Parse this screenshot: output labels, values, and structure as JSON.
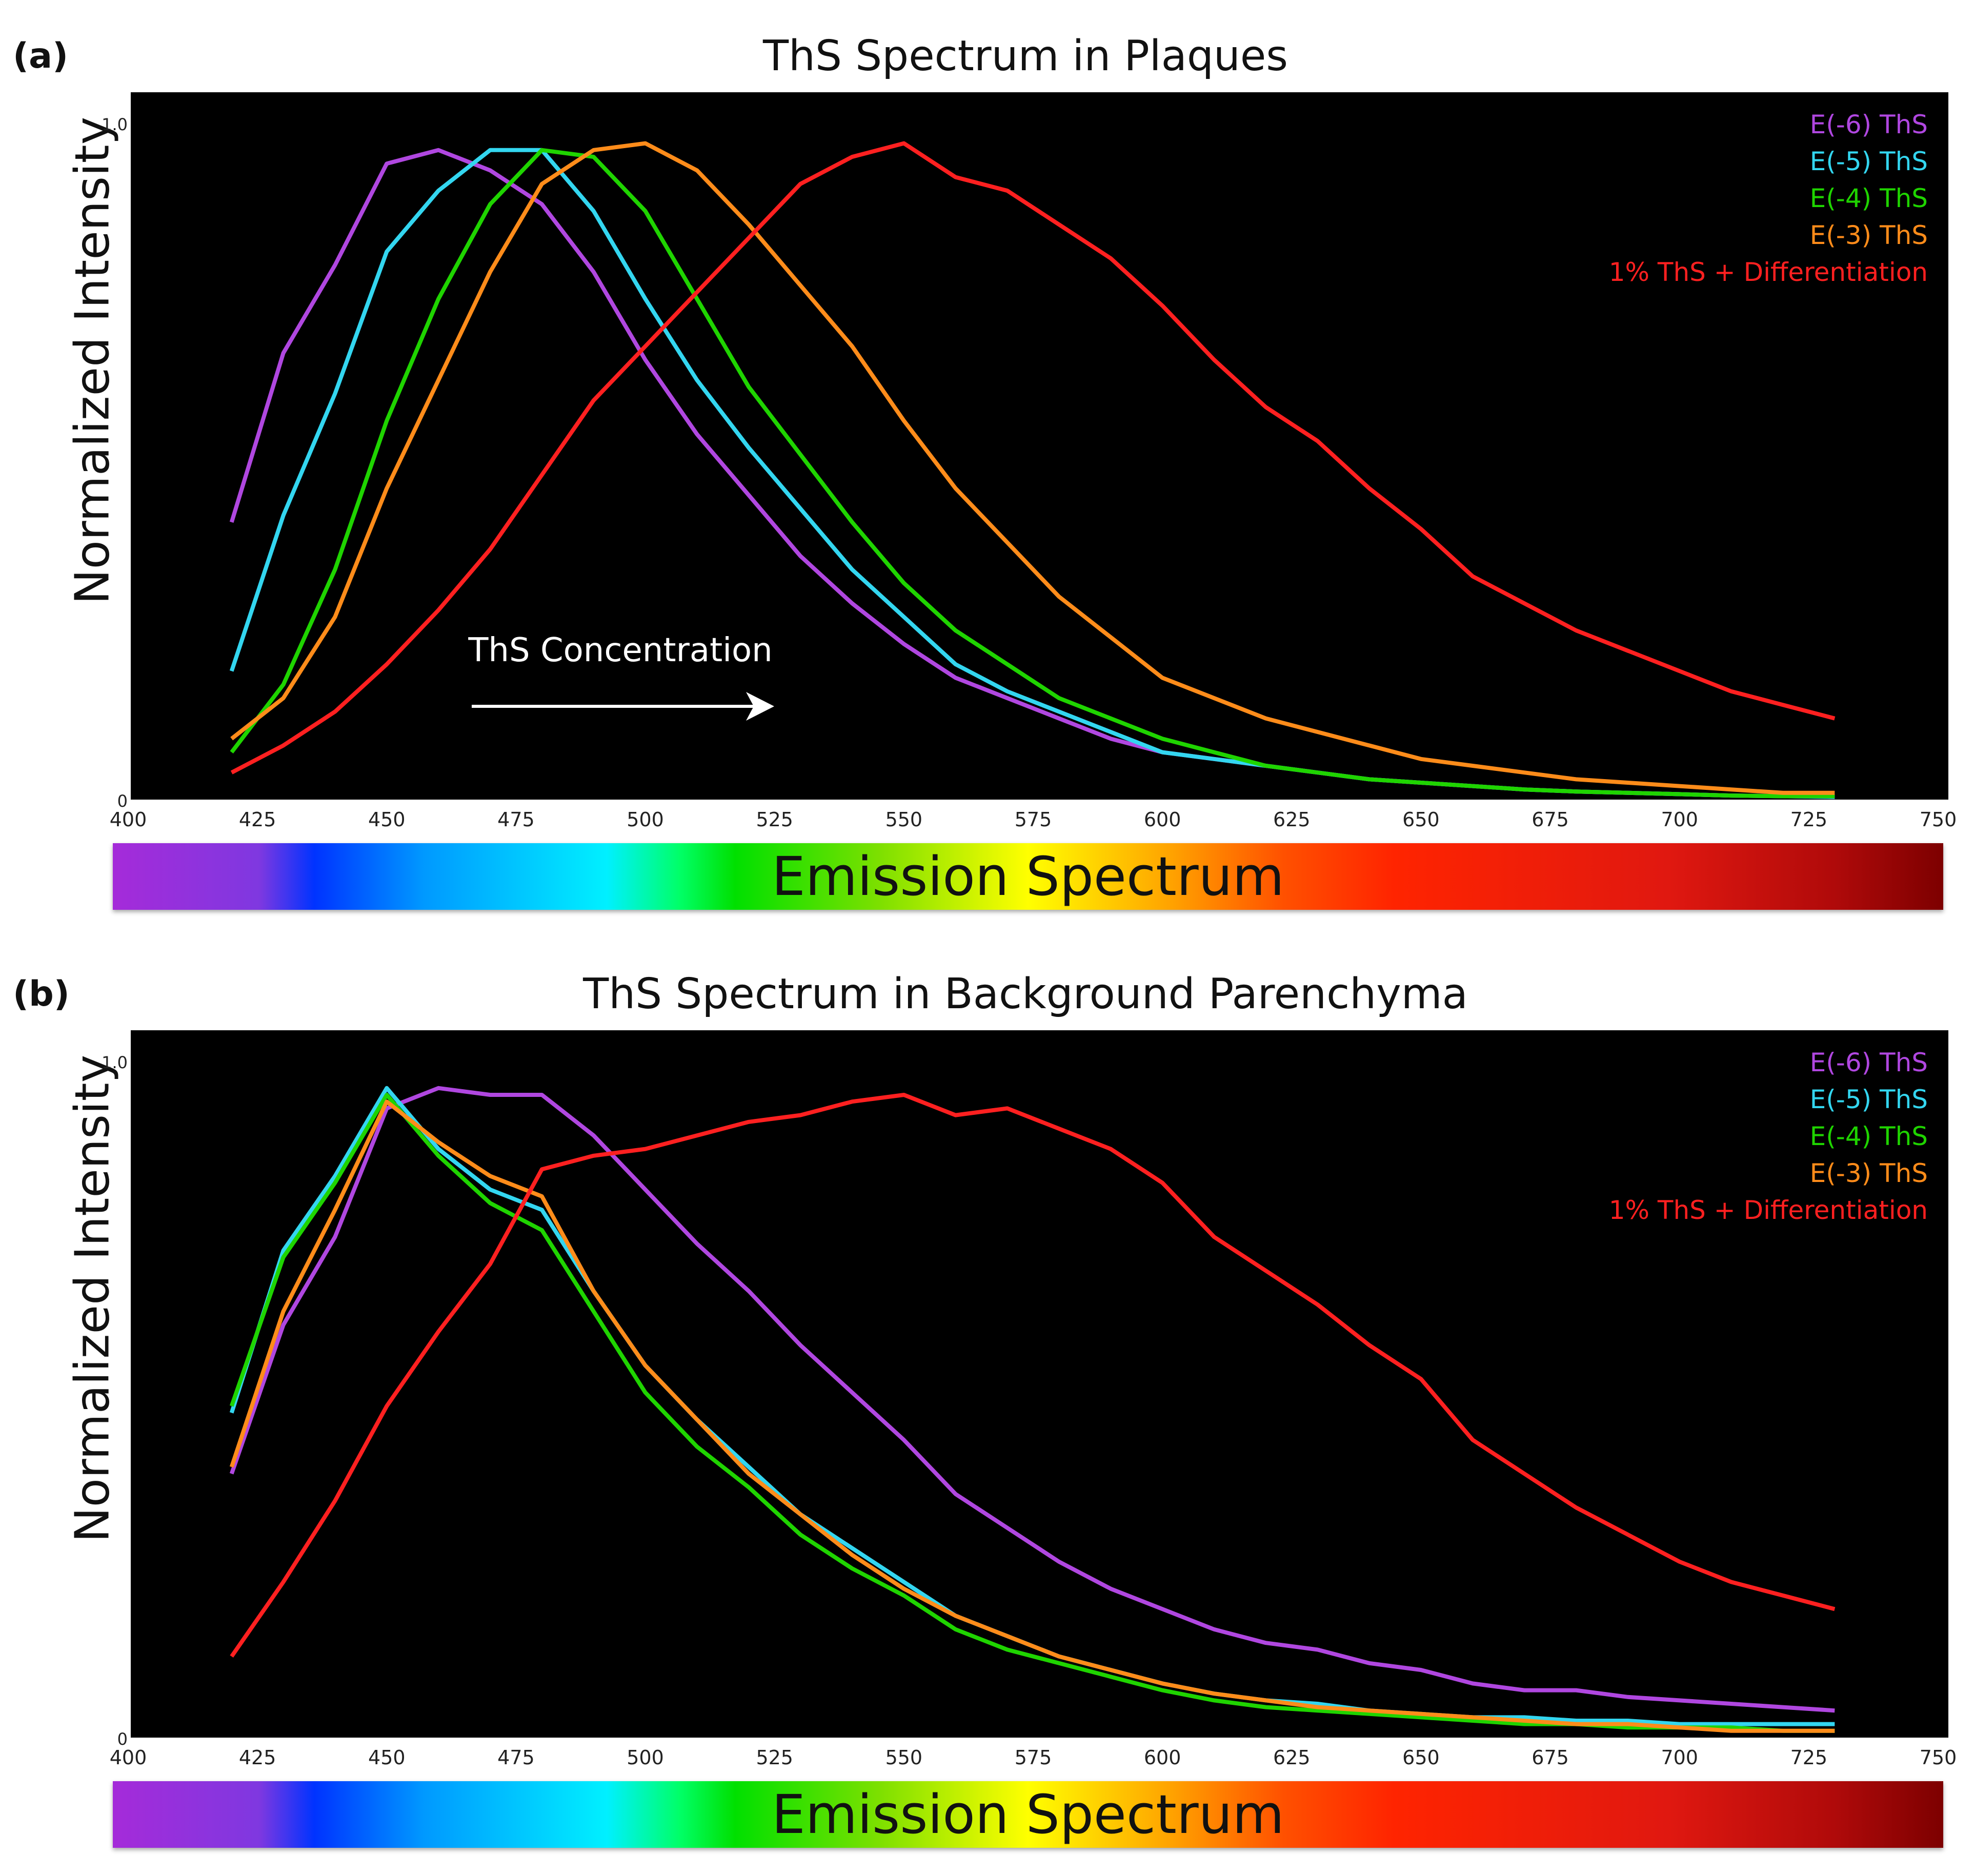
{
  "chart_data": [
    {
      "panel_label": "(a)",
      "type": "line",
      "title": "ThS Spectrum in Plaques",
      "ylabel": "Normalized Intensity",
      "xlim": [
        400,
        750
      ],
      "ylim": [
        0,
        1.0
      ],
      "x_ticks": [
        "400",
        "425",
        "450",
        "475",
        "500",
        "525",
        "550",
        "575",
        "600",
        "625",
        "650",
        "675",
        "700",
        "725",
        "750"
      ],
      "y_ticks": [
        "0",
        "1.0"
      ],
      "annotation": "ThS Concentration",
      "spectrum_label": "Emission Spectrum",
      "x": [
        420,
        430,
        440,
        450,
        460,
        470,
        480,
        490,
        500,
        510,
        520,
        530,
        540,
        550,
        560,
        570,
        580,
        590,
        600,
        610,
        620,
        630,
        640,
        650,
        660,
        670,
        680,
        690,
        700,
        710,
        720,
        730
      ],
      "series": [
        {
          "name": "E(-6) ThS",
          "color": "#b047e0",
          "values": [
            0.41,
            0.66,
            0.79,
            0.94,
            0.96,
            0.93,
            0.88,
            0.78,
            0.65,
            0.54,
            0.45,
            0.36,
            0.29,
            0.23,
            0.18,
            0.15,
            0.12,
            0.09,
            0.07,
            0.06,
            0.05,
            0.04,
            0.03,
            0.025,
            0.02,
            0.015,
            0.012,
            0.01,
            0.008,
            0.006,
            0.005,
            0.004
          ]
        },
        {
          "name": "E(-5) ThS",
          "color": "#33d6f0",
          "values": [
            0.19,
            0.42,
            0.6,
            0.81,
            0.9,
            0.96,
            0.96,
            0.87,
            0.74,
            0.62,
            0.52,
            0.43,
            0.34,
            0.27,
            0.2,
            0.16,
            0.13,
            0.1,
            0.07,
            0.06,
            0.05,
            0.04,
            0.03,
            0.025,
            0.02,
            0.015,
            0.012,
            0.01,
            0.008,
            0.006,
            0.005,
            0.004
          ]
        },
        {
          "name": "E(-4) ThS",
          "color": "#1fd400",
          "values": [
            0.07,
            0.17,
            0.34,
            0.56,
            0.74,
            0.88,
            0.96,
            0.95,
            0.87,
            0.74,
            0.61,
            0.51,
            0.41,
            0.32,
            0.25,
            0.2,
            0.15,
            0.12,
            0.09,
            0.07,
            0.05,
            0.04,
            0.03,
            0.025,
            0.02,
            0.015,
            0.012,
            0.01,
            0.008,
            0.006,
            0.005,
            0.005
          ]
        },
        {
          "name": "E(-3) ThS",
          "color": "#ff8c1a",
          "values": [
            0.09,
            0.15,
            0.27,
            0.46,
            0.62,
            0.78,
            0.91,
            0.96,
            0.97,
            0.93,
            0.85,
            0.76,
            0.67,
            0.56,
            0.46,
            0.38,
            0.3,
            0.24,
            0.18,
            0.15,
            0.12,
            0.1,
            0.08,
            0.06,
            0.05,
            0.04,
            0.03,
            0.025,
            0.02,
            0.015,
            0.01,
            0.01
          ]
        },
        {
          "name": "1% ThS + Differentiation",
          "color": "#ff2020",
          "values": [
            0.04,
            0.08,
            0.13,
            0.2,
            0.28,
            0.37,
            0.48,
            0.59,
            0.67,
            0.75,
            0.83,
            0.91,
            0.95,
            0.97,
            0.92,
            0.9,
            0.85,
            0.8,
            0.73,
            0.65,
            0.58,
            0.53,
            0.46,
            0.4,
            0.33,
            0.29,
            0.25,
            0.22,
            0.19,
            0.16,
            0.14,
            0.12
          ]
        }
      ]
    },
    {
      "panel_label": "(b)",
      "type": "line",
      "title": "ThS Spectrum in Background Parenchyma",
      "ylabel": "Normalized Intensity",
      "xlim": [
        400,
        750
      ],
      "ylim": [
        0,
        1.0
      ],
      "x_ticks": [
        "400",
        "425",
        "450",
        "475",
        "500",
        "525",
        "550",
        "575",
        "600",
        "625",
        "650",
        "675",
        "700",
        "725",
        "750"
      ],
      "y_ticks": [
        "0",
        "1.0"
      ],
      "spectrum_label": "Emission Spectrum",
      "x": [
        420,
        430,
        440,
        450,
        460,
        470,
        480,
        490,
        500,
        510,
        520,
        530,
        540,
        550,
        560,
        570,
        580,
        590,
        600,
        610,
        620,
        630,
        640,
        650,
        660,
        670,
        680,
        690,
        700,
        710,
        720,
        730
      ],
      "series": [
        {
          "name": "E(-6) ThS",
          "color": "#b047e0",
          "values": [
            0.39,
            0.61,
            0.74,
            0.93,
            0.96,
            0.95,
            0.95,
            0.89,
            0.81,
            0.73,
            0.66,
            0.58,
            0.51,
            0.44,
            0.36,
            0.31,
            0.26,
            0.22,
            0.19,
            0.16,
            0.14,
            0.13,
            0.11,
            0.1,
            0.08,
            0.07,
            0.07,
            0.06,
            0.055,
            0.05,
            0.045,
            0.04
          ]
        },
        {
          "name": "E(-5) ThS",
          "color": "#33d6f0",
          "values": [
            0.48,
            0.72,
            0.83,
            0.96,
            0.87,
            0.81,
            0.78,
            0.66,
            0.55,
            0.47,
            0.4,
            0.33,
            0.28,
            0.23,
            0.18,
            0.15,
            0.12,
            0.1,
            0.08,
            0.065,
            0.055,
            0.05,
            0.04,
            0.035,
            0.03,
            0.03,
            0.025,
            0.025,
            0.02,
            0.02,
            0.02,
            0.02
          ]
        },
        {
          "name": "E(-4) ThS",
          "color": "#1fd400",
          "values": [
            0.49,
            0.71,
            0.82,
            0.95,
            0.86,
            0.79,
            0.75,
            0.63,
            0.51,
            0.43,
            0.37,
            0.3,
            0.25,
            0.21,
            0.16,
            0.13,
            0.11,
            0.09,
            0.07,
            0.055,
            0.045,
            0.04,
            0.035,
            0.03,
            0.025,
            0.02,
            0.02,
            0.015,
            0.015,
            0.015,
            0.01,
            0.01
          ]
        },
        {
          "name": "E(-3) ThS",
          "color": "#ff8c1a",
          "values": [
            0.4,
            0.63,
            0.78,
            0.94,
            0.88,
            0.83,
            0.8,
            0.66,
            0.55,
            0.47,
            0.39,
            0.33,
            0.27,
            0.22,
            0.18,
            0.15,
            0.12,
            0.1,
            0.08,
            0.065,
            0.055,
            0.045,
            0.04,
            0.035,
            0.03,
            0.025,
            0.02,
            0.02,
            0.015,
            0.01,
            0.01,
            0.01
          ]
        },
        {
          "name": "1% ThS + Differentiation",
          "color": "#ff2020",
          "values": [
            0.12,
            0.23,
            0.35,
            0.49,
            0.6,
            0.7,
            0.84,
            0.86,
            0.87,
            0.89,
            0.91,
            0.92,
            0.94,
            0.95,
            0.92,
            0.93,
            0.9,
            0.87,
            0.82,
            0.74,
            0.69,
            0.64,
            0.58,
            0.53,
            0.44,
            0.39,
            0.34,
            0.3,
            0.26,
            0.23,
            0.21,
            0.19
          ]
        }
      ]
    }
  ]
}
